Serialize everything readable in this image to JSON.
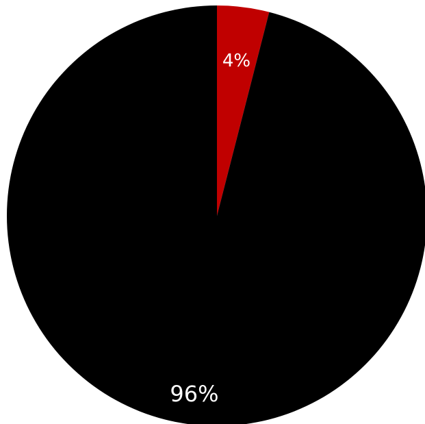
{
  "chart_data": {
    "type": "pie",
    "title": "",
    "slices": [
      {
        "value": 4,
        "label": "4%",
        "color": "#c00000"
      },
      {
        "value": 96,
        "label": "96%",
        "color": "#000000"
      }
    ]
  }
}
